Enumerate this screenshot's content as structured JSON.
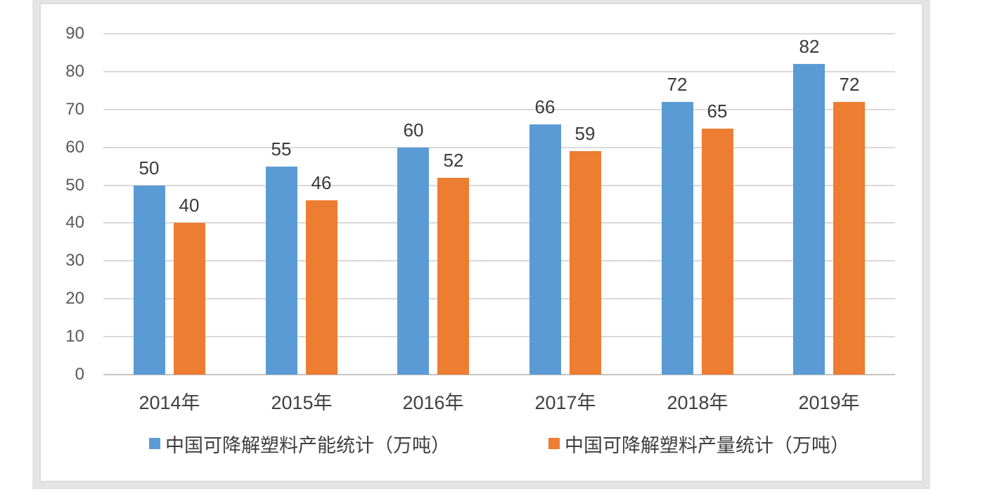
{
  "chart_data": {
    "type": "bar",
    "title": "",
    "xlabel": "",
    "ylabel": "",
    "categories": [
      "2014年",
      "2015年",
      "2016年",
      "2017年",
      "2018年",
      "2019年"
    ],
    "series": [
      {
        "name": "中国可降解塑料产能统计（万吨）",
        "color": "#5B9BD5",
        "values": [
          50,
          55,
          60,
          66,
          72,
          82
        ]
      },
      {
        "name": "中国可降解塑料产量统计（万吨）",
        "color": "#ED7D31",
        "values": [
          40,
          46,
          52,
          59,
          65,
          72
        ]
      }
    ],
    "y_ticks": [
      0,
      10,
      20,
      30,
      40,
      50,
      60,
      70,
      80,
      90
    ],
    "ylim": [
      0,
      90
    ],
    "grid": true,
    "data_labels": true,
    "legend_position": "bottom"
  },
  "colors": {
    "series_capacity": "#5B9BD5",
    "series_output": "#ED7D31",
    "gridline": "#D9D9D9",
    "axis_line": "#C3C3C3",
    "tick_text": "#595959",
    "label_text": "#3F3F3F",
    "frame_border": "#E4E4E4",
    "panel_border": "#DCDCDC",
    "background": "#FFFFFF"
  }
}
